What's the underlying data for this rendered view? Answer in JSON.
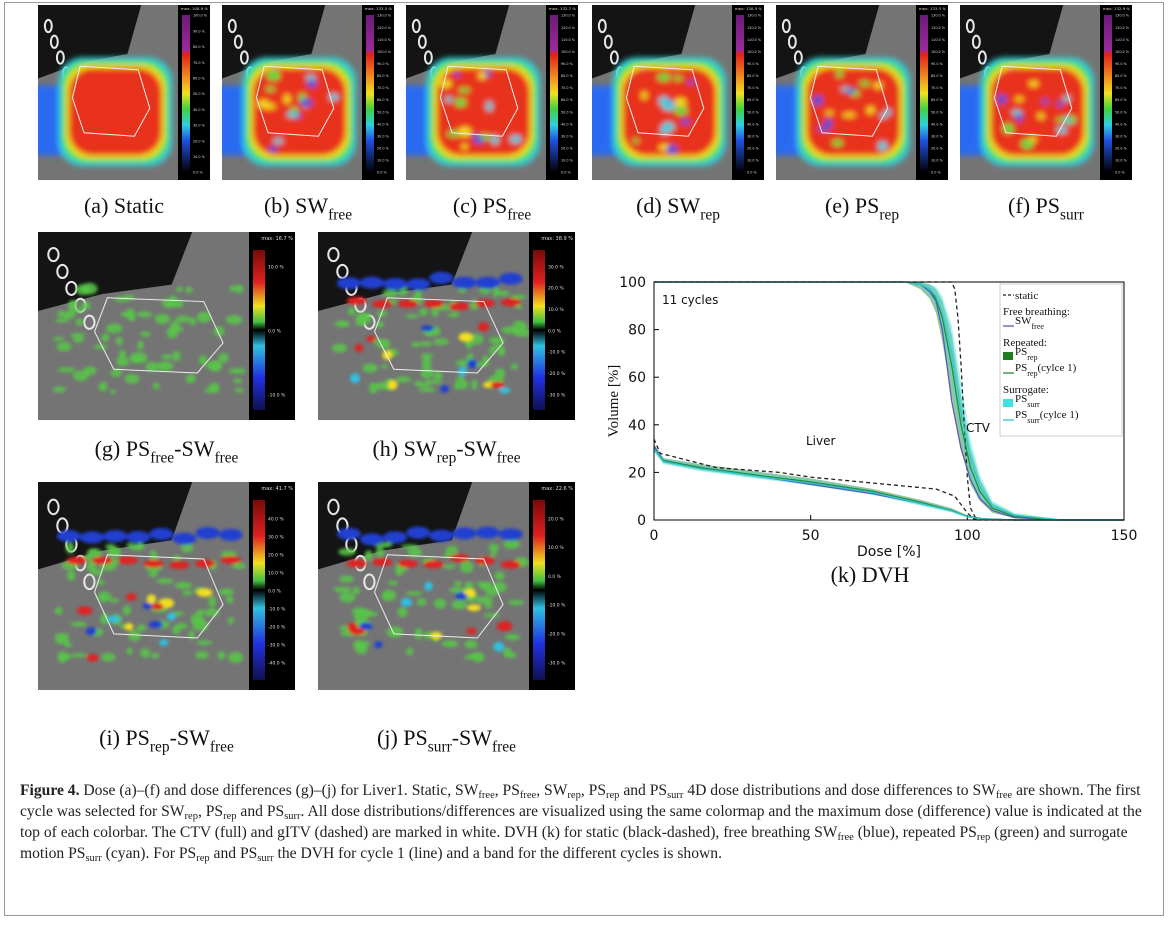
{
  "panels": [
    {
      "caption": [
        "(a) Static"
      ],
      "max": "max: 100.9 %",
      "ticks": [
        "100.0 %",
        "90.0 %",
        "80.0 %",
        "70.0 %",
        "60.0 %",
        "50.0 %",
        "40.0 %",
        "30.0 %",
        "20.0 %",
        "10.0 %",
        "0.0 %"
      ]
    },
    {
      "caption": [
        "(b) SW",
        "free"
      ],
      "max": "max: 133.5 %",
      "ticks": [
        "130.0 %",
        "120.0 %",
        "110.0 %",
        "100.0 %",
        "90.0 %",
        "80.0 %",
        "70.0 %",
        "60.0 %",
        "50.0 %",
        "40.0 %",
        "30.0 %",
        "20.0 %",
        "10.0 %",
        "0.0 %"
      ]
    },
    {
      "caption": [
        "(c) PS",
        "free"
      ],
      "max": "max: 132.7 %",
      "ticks": [
        "130.0 %",
        "120.0 %",
        "110.0 %",
        "100.0 %",
        "90.0 %",
        "80.0 %",
        "70.0 %",
        "60.0 %",
        "50.0 %",
        "40.0 %",
        "30.0 %",
        "20.0 %",
        "10.0 %",
        "0.0 %"
      ]
    },
    {
      "caption": [
        "(d) SW",
        "rep"
      ],
      "max": "max: 130.5 %",
      "ticks": [
        "130.0 %",
        "120.0 %",
        "110.0 %",
        "100.0 %",
        "90.0 %",
        "80.0 %",
        "70.0 %",
        "60.0 %",
        "50.0 %",
        "40.0 %",
        "30.0 %",
        "20.0 %",
        "10.0 %",
        "0.0 %"
      ]
    },
    {
      "caption": [
        "(e) PS",
        "rep"
      ],
      "max": "max: 133.5 %",
      "ticks": [
        "130.0 %",
        "120.0 %",
        "110.0 %",
        "100.0 %",
        "90.0 %",
        "80.0 %",
        "70.0 %",
        "60.0 %",
        "50.0 %",
        "40.0 %",
        "30.0 %",
        "20.0 %",
        "10.0 %",
        "0.0 %"
      ]
    },
    {
      "caption": [
        "(f) PS",
        "surr"
      ],
      "max": "max: 132.9 %",
      "ticks": [
        "130.0 %",
        "120.0 %",
        "110.0 %",
        "100.0 %",
        "90.0 %",
        "80.0 %",
        "70.0 %",
        "60.0 %",
        "50.0 %",
        "40.0 %",
        "30.0 %",
        "20.0 %",
        "10.0 %",
        "0.0 %"
      ]
    },
    {
      "caption": [
        "(g) PS",
        "free",
        "-SW",
        "free"
      ],
      "max": "max: 16.7 %",
      "ticks": [
        "10.0 %",
        "0.0 %",
        "-10.0 %"
      ]
    },
    {
      "caption": [
        "(h) SW",
        "rep",
        "-SW",
        "free"
      ],
      "max": "max: 38.9 %",
      "ticks": [
        "30.0 %",
        "20.0 %",
        "10.0 %",
        "0.0 %",
        "-10.0 %",
        "-20.0 %",
        "-30.0 %"
      ]
    },
    {
      "caption": [
        "(i) PS",
        "rep",
        "-SW",
        "free"
      ],
      "max": "max: 41.7 %",
      "ticks": [
        "40.0 %",
        "30.0 %",
        "20.0 %",
        "10.0 %",
        "0.0 %",
        "-10.0 %",
        "-20.0 %",
        "-30.0 %",
        "-40.0 %"
      ]
    },
    {
      "caption": [
        "(j) PS",
        "surr",
        "-SW",
        "free"
      ],
      "max": "max: 22.6 %",
      "ticks": [
        "20.0 %",
        "10.0 %",
        "0.0 %",
        "-10.0 %",
        "-20.0 %",
        "-30.0 %"
      ]
    }
  ],
  "chart_data": {
    "type": "line",
    "caption": "(k) DVH",
    "x_label": "Dose [%]",
    "y_label": "Volume [%]",
    "xlim": [
      0,
      150
    ],
    "ylim": [
      0,
      100
    ],
    "xticks": [
      0,
      50,
      100,
      150
    ],
    "yticks": [
      0,
      20,
      40,
      60,
      80,
      100
    ],
    "annotations": [
      "11 cycles",
      "CTV",
      "Liver"
    ],
    "series": [
      {
        "name": "static",
        "color": "#222222",
        "style": "dashed",
        "curves": [
          {
            "x": [
              0,
              95,
              96,
              97,
              98,
              99,
              100,
              101,
              103,
              150
            ],
            "values": [
              100,
              100,
              97,
              85,
              65,
              40,
              18,
              5,
              0,
              0
            ]
          },
          {
            "x": [
              0,
              2,
              20,
              40,
              50,
              70,
              90,
              96,
              100,
              102,
              110,
              150
            ],
            "values": [
              34,
              28,
              22,
              20,
              18,
              15.5,
              13,
              10,
              3,
              0.5,
              0,
              0
            ]
          }
        ]
      },
      {
        "name": "SW",
        "name_sub": "free",
        "legend_group": "Free breathing:",
        "color": "#5a5ab8",
        "style": "solid",
        "curves": [
          {
            "x": [
              0,
              80,
              85,
              88,
              90,
              92,
              95,
              98,
              101,
              104,
              108,
              115,
              130,
              150
            ],
            "values": [
              100,
              100,
              99,
              96,
              92,
              80,
              50,
              30,
              17,
              9,
              4,
              1,
              0,
              0
            ]
          },
          {
            "x": [
              0,
              3,
              15,
              35,
              50,
              70,
              85,
              95,
              100,
              105,
              115,
              150
            ],
            "values": [
              31,
              25,
              22,
              18,
              15,
              11,
              7,
              4,
              1.5,
              0.5,
              0,
              0
            ]
          }
        ]
      },
      {
        "name": "PS",
        "name_sub": "rep",
        "legend_group": "Repeated:",
        "color": "#1e7d1e",
        "style": "band",
        "bands": [
          {
            "x": [
              0,
              80,
              85,
              88,
              90,
              92,
              95,
              98,
              101,
              104,
              108,
              115,
              130,
              150
            ],
            "lower": [
              100,
              100,
              97,
              93,
              87,
              75,
              52,
              30,
              15,
              8,
              3,
              0.8,
              0,
              0
            ],
            "upper": [
              100,
              100,
              100,
              99,
              97,
              92,
              78,
              52,
              30,
              17,
              7,
              2.5,
              0.2,
              0
            ]
          },
          {
            "x": [
              0,
              3,
              15,
              35,
              50,
              70,
              85,
              95,
              100,
              105,
              115,
              150
            ],
            "lower": [
              29,
              24,
              21,
              17.5,
              15,
              11,
              6.5,
              3.5,
              1.2,
              0.4,
              0,
              0
            ],
            "upper": [
              32,
              26,
              23.5,
              20,
              17.5,
              13,
              8.5,
              5,
              2,
              0.7,
              0,
              0
            ]
          }
        ]
      },
      {
        "name": "PS",
        "name_sub": "rep",
        "name_suffix": "(cylce 1)",
        "color": "#2a8a3a",
        "style": "solid",
        "curves": [
          {
            "x": [
              0,
              80,
              85,
              88,
              90,
              92,
              95,
              98,
              101,
              104,
              108,
              115,
              130,
              150
            ],
            "values": [
              100,
              100,
              99,
              97,
              93,
              85,
              65,
              40,
              22,
              12,
              5,
              1.5,
              0,
              0
            ]
          },
          {
            "x": [
              0,
              3,
              15,
              35,
              50,
              70,
              85,
              95,
              100,
              105,
              115,
              150
            ],
            "values": [
              30,
              25,
              22,
              18.5,
              16,
              12,
              7.5,
              4,
              1.5,
              0.5,
              0,
              0
            ]
          }
        ]
      },
      {
        "name": "PS",
        "name_sub": "surr",
        "legend_group": "Surrogate:",
        "color": "#40e0e0",
        "style": "band",
        "bands": [
          {
            "x": [
              0,
              80,
              85,
              88,
              90,
              92,
              95,
              98,
              101,
              104,
              108,
              115,
              130,
              150
            ],
            "lower": [
              100,
              100,
              98,
              94,
              89,
              78,
              58,
              35,
              18,
              9,
              3.5,
              1,
              0,
              0
            ],
            "upper": [
              100,
              100,
              100,
              99,
              98,
              94,
              82,
              58,
              34,
              19,
              8,
              3,
              0.3,
              0
            ]
          },
          {
            "x": [
              0,
              3,
              15,
              35,
              50,
              70,
              85,
              95,
              100,
              105,
              115,
              150
            ],
            "lower": [
              28.5,
              23.5,
              20.5,
              17,
              14.5,
              10.5,
              6,
              3.2,
              1,
              0.3,
              0,
              0
            ],
            "upper": [
              31.5,
              26,
              23,
              19.5,
              17,
              12.5,
              8,
              4.6,
              1.8,
              0.6,
              0,
              0
            ]
          }
        ]
      },
      {
        "name": "PS",
        "name_sub": "surr",
        "name_suffix": "(cylce 1)",
        "color": "#30c8d0",
        "style": "solid",
        "curves": [
          {
            "x": [
              0,
              80,
              85,
              88,
              90,
              92,
              95,
              98,
              101,
              104,
              108,
              115,
              130,
              150
            ],
            "values": [
              100,
              100,
              99,
              97,
              94,
              87,
              70,
              45,
              26,
              14,
              6,
              2,
              0,
              0
            ]
          },
          {
            "x": [
              0,
              3,
              15,
              35,
              50,
              70,
              85,
              95,
              100,
              105,
              115,
              150
            ],
            "values": [
              30,
              24.5,
              21.5,
              18,
              15.5,
              11.5,
              7,
              3.8,
              1.4,
              0.4,
              0,
              0
            ]
          }
        ]
      }
    ]
  },
  "figure_caption": {
    "label": "Figure 4.",
    "segments": [
      " Dose (a)–(f) and dose differences (g)–(j) for Liver1. Static, SW",
      "free",
      ", PS",
      "free",
      ", SW",
      "rep",
      ", PS",
      "rep",
      " and PS",
      "surr",
      " 4D dose distributions and dose differences to SW",
      "free",
      " are shown. The first cycle was selected for SW",
      "rep",
      ", PS",
      "rep",
      " and PS",
      "surr",
      ". All dose distributions/differences are visualized using the same colormap and the maximum dose (difference) value is indicated at the top of each colorbar. The CTV (full) and gITV (dashed) are marked in white. DVH (k) for static (black-dashed), free breathing SW",
      "free",
      " (blue), repeated PS",
      "rep",
      " (green) and surrogate motion PS",
      "surr",
      " (cyan). For PS",
      "rep",
      " and PS",
      "surr",
      " the DVH for cycle 1 (line) and a band for the different cycles is shown."
    ]
  }
}
